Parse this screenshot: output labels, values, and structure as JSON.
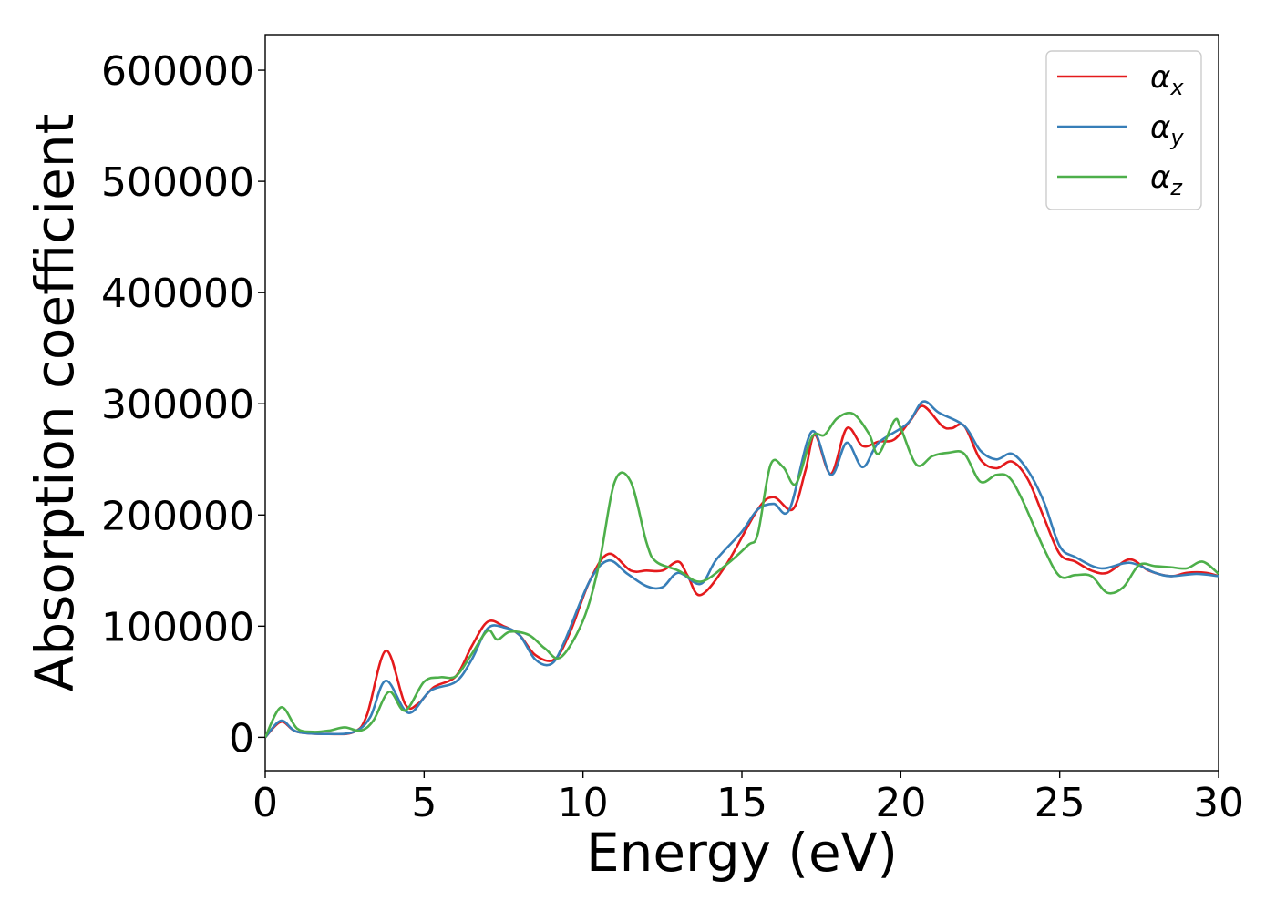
{
  "chart_data": {
    "type": "line",
    "title": "",
    "xlabel": "Energy (eV)",
    "ylabel": "Absorption coefficient",
    "xlim": [
      0,
      30
    ],
    "ylim": [
      -30000,
      632000
    ],
    "xticks": [
      0,
      5,
      10,
      15,
      20,
      25,
      30
    ],
    "yticks": [
      0,
      100000,
      200000,
      300000,
      400000,
      500000,
      600000
    ],
    "xtick_labels": [
      "0",
      "5",
      "10",
      "15",
      "20",
      "25",
      "30"
    ],
    "ytick_labels": [
      "0",
      "100000",
      "200000",
      "300000",
      "400000",
      "500000",
      "600000"
    ],
    "grid": false,
    "legend_position": "top-right",
    "series": [
      {
        "name": "α",
        "subscript": "x",
        "color": "#e41a1c",
        "points": [
          [
            0,
            0
          ],
          [
            0.5,
            14000
          ],
          [
            1,
            5000
          ],
          [
            2,
            3000
          ],
          [
            2.8,
            5000
          ],
          [
            3.2,
            20000
          ],
          [
            3.8,
            78000
          ],
          [
            4.4,
            30000
          ],
          [
            4.8,
            30000
          ],
          [
            5.3,
            45000
          ],
          [
            6,
            55000
          ],
          [
            6.5,
            82000
          ],
          [
            7,
            104000
          ],
          [
            7.5,
            100000
          ],
          [
            8,
            92000
          ],
          [
            8.5,
            74000
          ],
          [
            9.1,
            70000
          ],
          [
            9.6,
            95000
          ],
          [
            10.2,
            140000
          ],
          [
            10.8,
            165000
          ],
          [
            11.5,
            150000
          ],
          [
            12,
            150000
          ],
          [
            12.5,
            150000
          ],
          [
            13,
            158000
          ],
          [
            13.3,
            145000
          ],
          [
            13.7,
            128000
          ],
          [
            14.5,
            155000
          ],
          [
            15.5,
            205000
          ],
          [
            16,
            216000
          ],
          [
            16.6,
            205000
          ],
          [
            17,
            240000
          ],
          [
            17.3,
            272000
          ],
          [
            17.8,
            237000
          ],
          [
            18.3,
            278000
          ],
          [
            18.8,
            262000
          ],
          [
            19.3,
            266000
          ],
          [
            19.8,
            268000
          ],
          [
            20.3,
            285000
          ],
          [
            20.7,
            298000
          ],
          [
            21.3,
            280000
          ],
          [
            21.6,
            278000
          ],
          [
            22,
            280000
          ],
          [
            22.5,
            250000
          ],
          [
            23,
            242000
          ],
          [
            23.5,
            248000
          ],
          [
            24,
            232000
          ],
          [
            24.5,
            198000
          ],
          [
            25,
            165000
          ],
          [
            25.5,
            158000
          ],
          [
            26,
            150000
          ],
          [
            26.5,
            148000
          ],
          [
            27.2,
            160000
          ],
          [
            27.8,
            150000
          ],
          [
            28.5,
            145000
          ],
          [
            29,
            148000
          ],
          [
            29.6,
            148000
          ],
          [
            30,
            145000
          ]
        ]
      },
      {
        "name": "α",
        "subscript": "y",
        "color": "#377eb8",
        "points": [
          [
            0,
            0
          ],
          [
            0.5,
            15000
          ],
          [
            1,
            5000
          ],
          [
            2,
            3000
          ],
          [
            2.8,
            5000
          ],
          [
            3.3,
            18000
          ],
          [
            3.8,
            51000
          ],
          [
            4.5,
            22000
          ],
          [
            5.2,
            42000
          ],
          [
            6,
            50000
          ],
          [
            6.5,
            70000
          ],
          [
            7,
            98000
          ],
          [
            7.5,
            99000
          ],
          [
            8,
            92000
          ],
          [
            8.5,
            70000
          ],
          [
            9,
            66000
          ],
          [
            9.4,
            85000
          ],
          [
            10.2,
            140000
          ],
          [
            10.8,
            159000
          ],
          [
            11.4,
            147000
          ],
          [
            12,
            136000
          ],
          [
            12.5,
            135000
          ],
          [
            13,
            148000
          ],
          [
            13.7,
            138000
          ],
          [
            14.2,
            160000
          ],
          [
            15,
            185000
          ],
          [
            15.5,
            205000
          ],
          [
            16,
            210000
          ],
          [
            16.5,
            205000
          ],
          [
            17.2,
            275000
          ],
          [
            17.8,
            236000
          ],
          [
            18.3,
            265000
          ],
          [
            18.8,
            243000
          ],
          [
            19.3,
            265000
          ],
          [
            20.2,
            282000
          ],
          [
            20.7,
            302000
          ],
          [
            21.2,
            292000
          ],
          [
            22,
            280000
          ],
          [
            22.5,
            258000
          ],
          [
            23,
            250000
          ],
          [
            23.5,
            255000
          ],
          [
            24,
            240000
          ],
          [
            24.5,
            212000
          ],
          [
            25,
            172000
          ],
          [
            25.5,
            162000
          ],
          [
            26.3,
            152000
          ],
          [
            27.2,
            157000
          ],
          [
            28,
            148000
          ],
          [
            28.5,
            145000
          ],
          [
            29.3,
            147000
          ],
          [
            30,
            145000
          ]
        ]
      },
      {
        "name": "α",
        "subscript": "z",
        "color": "#4daf4a",
        "points": [
          [
            0,
            0
          ],
          [
            0.5,
            27000
          ],
          [
            1,
            8000
          ],
          [
            1.5,
            5000
          ],
          [
            2,
            6000
          ],
          [
            2.5,
            9000
          ],
          [
            3,
            6000
          ],
          [
            3.4,
            15000
          ],
          [
            3.9,
            41000
          ],
          [
            4.4,
            24000
          ],
          [
            5,
            50000
          ],
          [
            5.5,
            54000
          ],
          [
            6,
            55000
          ],
          [
            6.5,
            75000
          ],
          [
            7,
            96000
          ],
          [
            7.3,
            88000
          ],
          [
            7.7,
            95000
          ],
          [
            8.3,
            92000
          ],
          [
            8.8,
            80000
          ],
          [
            9.3,
            72000
          ],
          [
            10,
            105000
          ],
          [
            10.5,
            155000
          ],
          [
            11,
            230000
          ],
          [
            11.5,
            230000
          ],
          [
            12,
            175000
          ],
          [
            12.3,
            158000
          ],
          [
            13,
            150000
          ],
          [
            13.7,
            140000
          ],
          [
            14.5,
            155000
          ],
          [
            15.2,
            173000
          ],
          [
            15.5,
            183000
          ],
          [
            15.9,
            245000
          ],
          [
            16.3,
            243000
          ],
          [
            16.7,
            228000
          ],
          [
            17.2,
            270000
          ],
          [
            17.6,
            272000
          ],
          [
            18,
            287000
          ],
          [
            18.5,
            291000
          ],
          [
            19,
            273000
          ],
          [
            19.3,
            255000
          ],
          [
            19.8,
            285000
          ],
          [
            20,
            278000
          ],
          [
            20.5,
            245000
          ],
          [
            21,
            253000
          ],
          [
            21.5,
            256000
          ],
          [
            22,
            255000
          ],
          [
            22.5,
            230000
          ],
          [
            23,
            236000
          ],
          [
            23.4,
            234000
          ],
          [
            23.8,
            215000
          ],
          [
            24.5,
            170000
          ],
          [
            25,
            145000
          ],
          [
            25.5,
            146000
          ],
          [
            26,
            145000
          ],
          [
            26.5,
            130000
          ],
          [
            27,
            135000
          ],
          [
            27.5,
            155000
          ],
          [
            28,
            154000
          ],
          [
            28.5,
            153000
          ],
          [
            29,
            152000
          ],
          [
            29.5,
            158000
          ],
          [
            30,
            147000
          ]
        ]
      }
    ]
  }
}
